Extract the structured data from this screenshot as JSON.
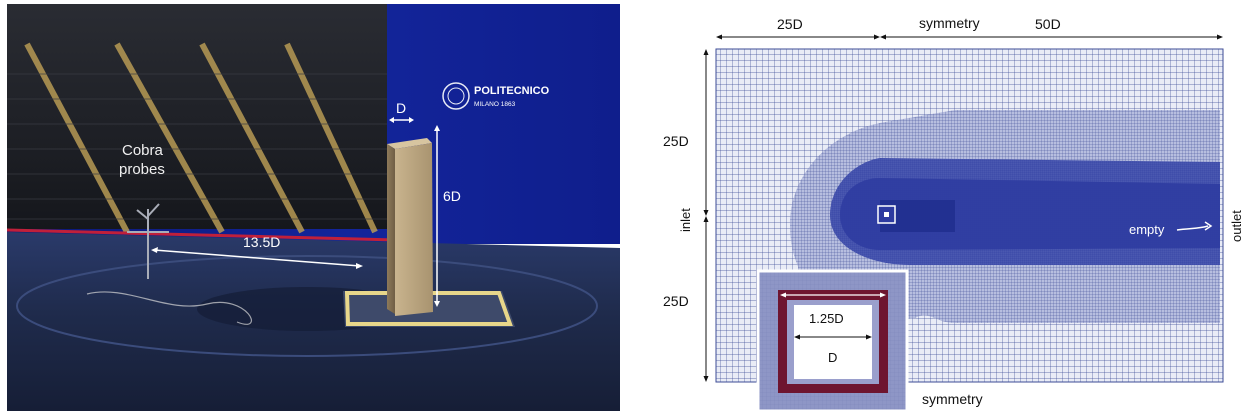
{
  "photo": {
    "logo_text_line1": "POLITECNICO",
    "logo_text_line2": "MILANO 1863",
    "label_width": "D",
    "label_height": "6D",
    "label_probes_line1": "Cobra",
    "label_probes_line2": "probes",
    "label_distance": "13.5D"
  },
  "mesh": {
    "label_top_left": "25D",
    "label_top_symmetry": "symmetry",
    "label_top_right": "50D",
    "label_left_upper": "25D",
    "label_left_lower": "25D",
    "label_inlet": "inlet",
    "label_outlet": "outlet",
    "label_empty": "empty",
    "label_bottom_symmetry": "symmetry",
    "inset_label_outer": "1.25D",
    "inset_label_inner": "D"
  },
  "colors": {
    "wall_blue": "#13259b",
    "floor_dark": "#1b2640",
    "mesh_line": "#3c4b96",
    "refined_dark": "#2d3aa0",
    "inset_dark_red": "#6e1530"
  }
}
